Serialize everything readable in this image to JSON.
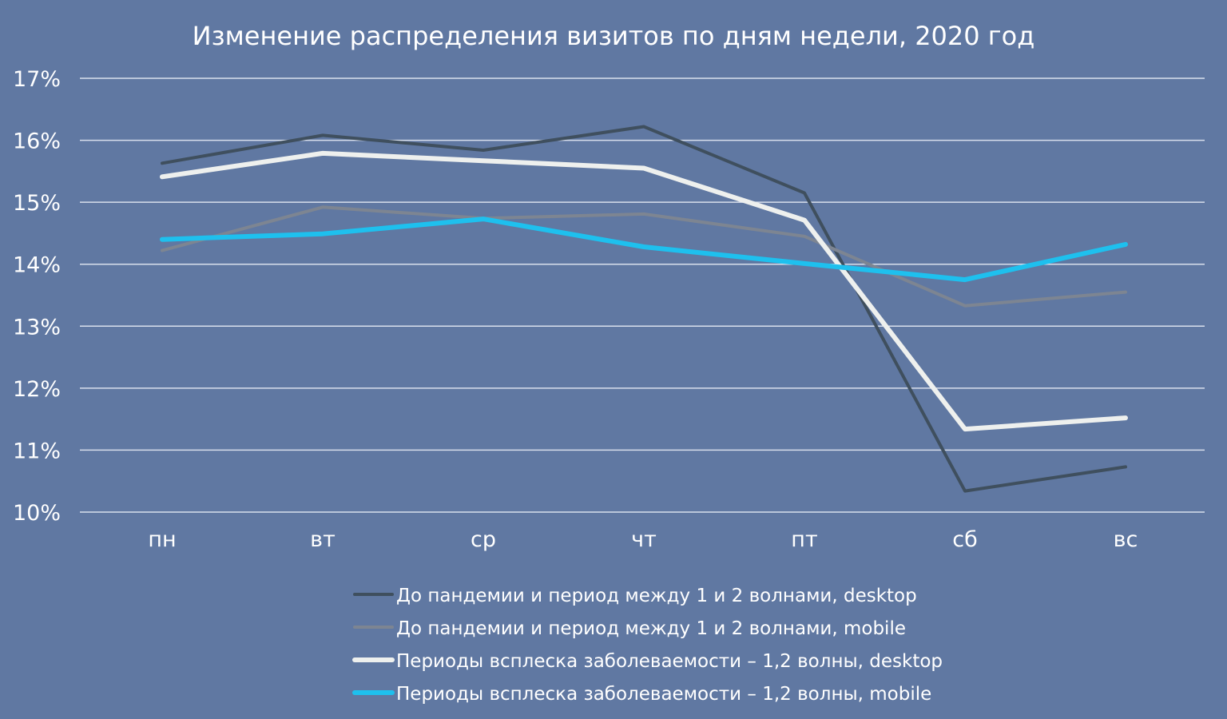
{
  "chart_data": {
    "type": "line",
    "title": "Изменение распределения визитов по дням недели, 2020 год",
    "categories": [
      "пн",
      "вт",
      "ср",
      "чт",
      "пт",
      "сб",
      "вс"
    ],
    "ylim": [
      0.1,
      0.17
    ],
    "yticks": [
      "10%",
      "11%",
      "12%",
      "13%",
      "14%",
      "15%",
      "16%",
      "17%"
    ],
    "yticks_values": [
      0.1,
      0.11,
      0.12,
      0.13,
      0.14,
      0.15,
      0.16,
      0.17
    ],
    "grid": true,
    "legend_position": "bottom",
    "series": [
      {
        "name": "До пандемии и период между 1 и 2 волнами, desktop",
        "color": "#3f4f5e",
        "values": [
          0.1563,
          0.1608,
          0.1584,
          0.1622,
          0.1515,
          0.1034,
          0.1073
        ]
      },
      {
        "name": "До пандемии и период между 1 и 2 волнами, mobile",
        "color": "#7d8592",
        "values": [
          0.1422,
          0.1492,
          0.1474,
          0.1481,
          0.1445,
          0.1333,
          0.1355
        ]
      },
      {
        "name": "Периоды всплеска заболеваемости – 1,2 волны, desktop",
        "color": "#eef0ee",
        "values": [
          0.1541,
          0.1579,
          0.1567,
          0.1555,
          0.1471,
          0.1134,
          0.1152
        ]
      },
      {
        "name": "Периоды всплеска заболеваемости – 1,2 волны, mobile",
        "color": "#1ec0ee",
        "values": [
          0.144,
          0.1449,
          0.1473,
          0.1428,
          0.1401,
          0.1375,
          0.1432
        ]
      }
    ]
  }
}
